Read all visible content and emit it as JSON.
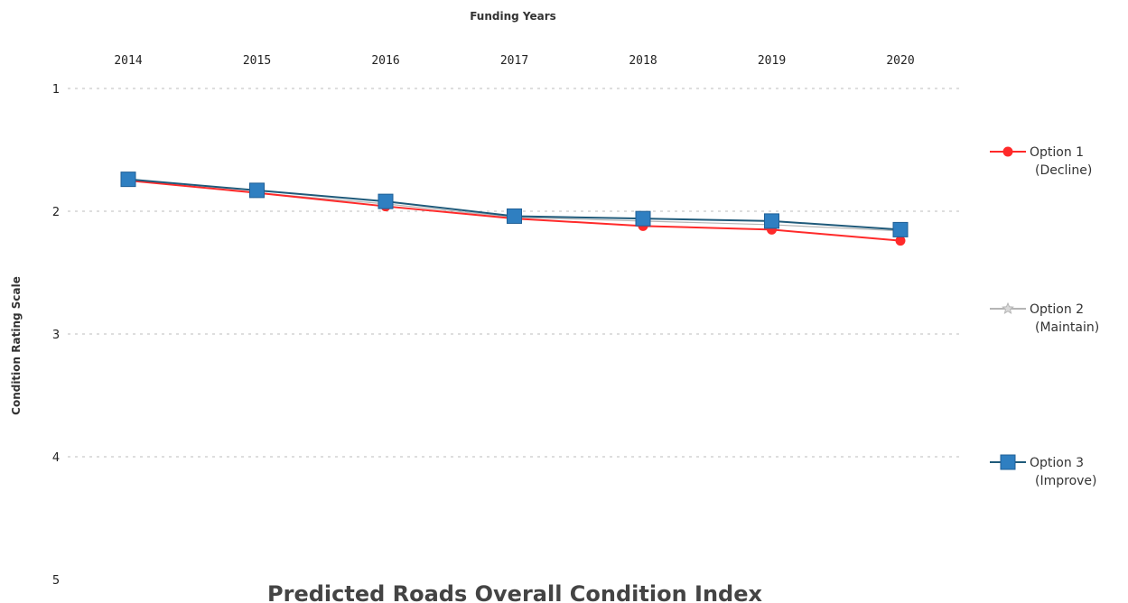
{
  "chart_data": {
    "type": "line",
    "title": "Predicted Roads Overall Condition Index",
    "xlabel": "Funding Years",
    "ylabel": "Condition Rating Scale",
    "x": [
      "2014",
      "2015",
      "2016",
      "2017",
      "2018",
      "2019",
      "2020"
    ],
    "y_ticks": [
      "1",
      "2",
      "3",
      "4",
      "5"
    ],
    "ylim": [
      1,
      5
    ],
    "y_inverted": true,
    "x_axis_position": "top",
    "grid": true,
    "legend_position": "right",
    "series": [
      {
        "name": "Option 1",
        "sub": "(Decline)",
        "color": "#ff2a2a",
        "marker": "circle",
        "values": [
          1.75,
          1.85,
          1.96,
          2.06,
          2.12,
          2.15,
          2.24
        ]
      },
      {
        "name": "Option 2",
        "sub": "(Maintain)",
        "color": "#b5b5b5",
        "marker": "star",
        "values": [
          1.75,
          1.85,
          1.94,
          2.05,
          2.08,
          2.11,
          2.16
        ]
      },
      {
        "name": "Option 3",
        "sub": "(Improve)",
        "color": "#2f7fc1",
        "marker": "square",
        "values": [
          1.74,
          1.83,
          1.92,
          2.04,
          2.06,
          2.08,
          2.15
        ]
      }
    ]
  }
}
